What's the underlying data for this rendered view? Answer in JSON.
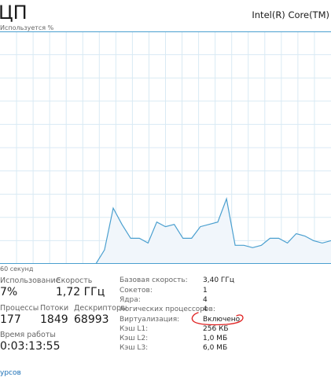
{
  "header": {
    "title": "ЦП",
    "cpu_name": "Intel(R) Core(TM)"
  },
  "graph": {
    "y_label": "Используется %",
    "x_label": "60 секунд"
  },
  "chart_data": {
    "type": "area",
    "ylim": [
      0,
      100
    ],
    "grid": true,
    "line_color": "#4a9fcf",
    "fill_color": "#f1f6fb",
    "grid_color": "#d9eaf4",
    "border_color": "#4a9fcf",
    "values": [
      null,
      null,
      null,
      null,
      null,
      null,
      null,
      null,
      null,
      null,
      null,
      0,
      6,
      24,
      17,
      11,
      11,
      9,
      18,
      16,
      17,
      11,
      11,
      16,
      17,
      18,
      28,
      8,
      8,
      7,
      8,
      11,
      11,
      9,
      13,
      12,
      10,
      9,
      10
    ]
  },
  "stats": {
    "utilization_label": "Использование",
    "utilization_value": "7%",
    "speed_label": "Скорость",
    "speed_value": "1,72 ГГц",
    "processes_label": "Процессы",
    "processes_value": "177",
    "threads_label": "Потоки",
    "threads_value": "1849",
    "handles_label": "Дескрипторы",
    "handles_value": "68993",
    "uptime_label": "Время работы",
    "uptime_value": "0:03:13:55"
  },
  "specs": [
    {
      "label": "Базовая скорость:",
      "value": "3,40 ГГц"
    },
    {
      "label": "Сокетов:",
      "value": "1"
    },
    {
      "label": "Ядра:",
      "value": "4"
    },
    {
      "label": "Логических процессоров:",
      "value": "4"
    },
    {
      "label": "Виртуализация:",
      "value": "Включено"
    },
    {
      "label": "Кэш L1:",
      "value": "256 КБ"
    },
    {
      "label": "Кэш L2:",
      "value": "1,0 МБ"
    },
    {
      "label": "Кэш L3:",
      "value": "6,0 МБ"
    }
  ],
  "footer": {
    "link_text": "урсов"
  },
  "annotation": {
    "color": "#e02020"
  }
}
